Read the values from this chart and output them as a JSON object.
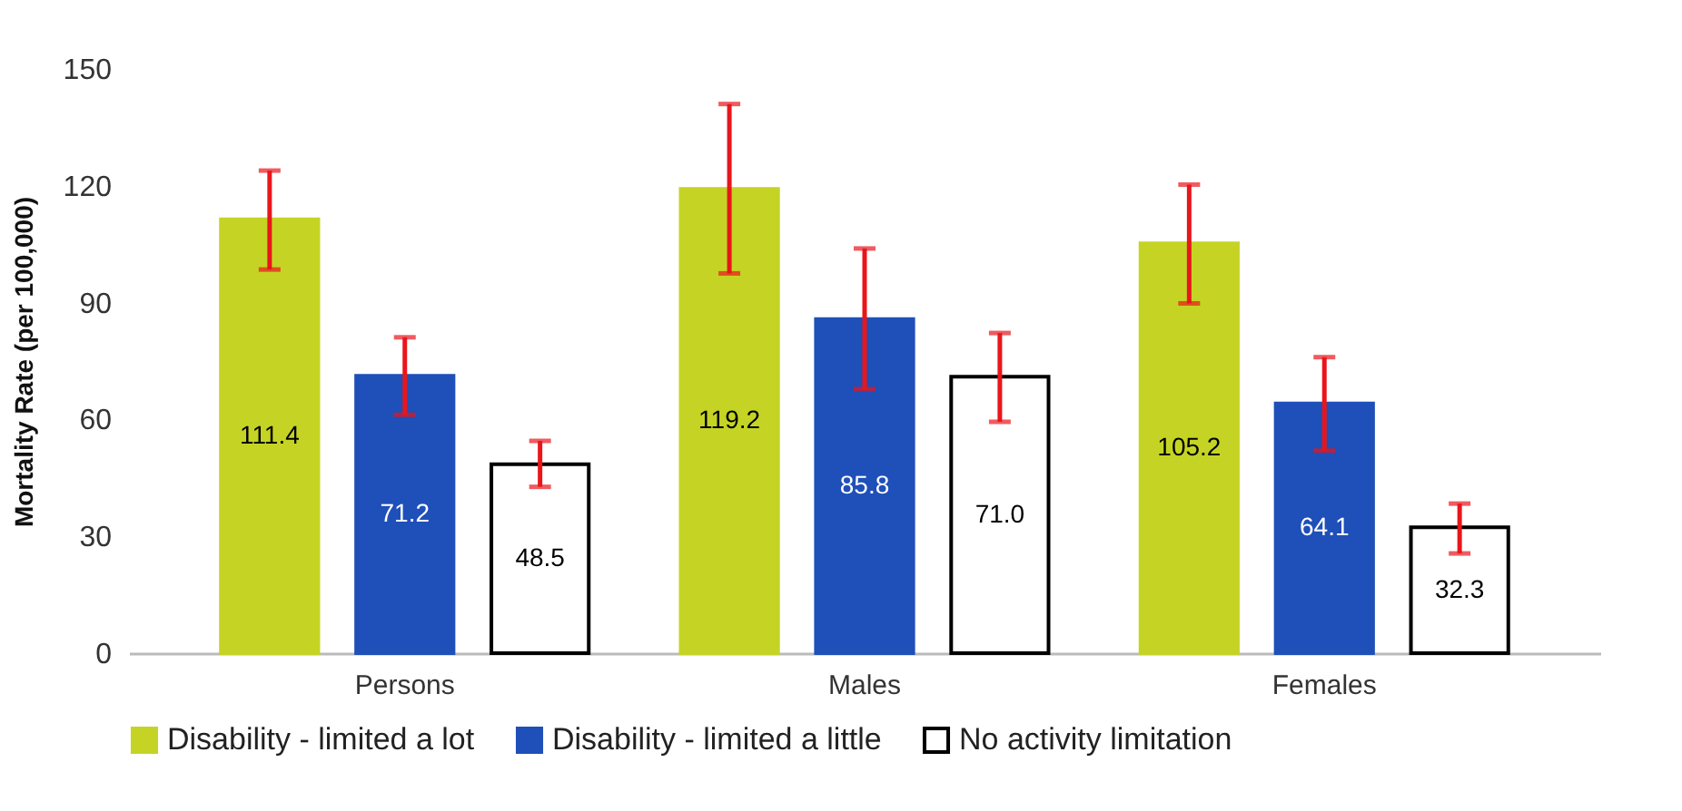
{
  "chart_data": {
    "type": "bar",
    "ylabel": "Mortality Rate (per 100,000)",
    "categories": [
      "Persons",
      "Males",
      "Females"
    ],
    "series": [
      {
        "name": "Disability - limited a lot",
        "color": "#c5d424",
        "values": [
          111.4,
          119.2,
          105.2
        ],
        "value_labels": [
          "111.4",
          "119.2",
          "105.2"
        ],
        "errors": [
          [
            98.5,
            123.9
          ],
          [
            97.5,
            141.0
          ],
          [
            89.8,
            120.3
          ]
        ]
      },
      {
        "name": "Disability - limited a little",
        "color": "#1f4fb8",
        "values": [
          71.2,
          85.8,
          64.1
        ],
        "value_labels": [
          "71.2",
          "85.8",
          "64.1"
        ],
        "errors": [
          [
            61.2,
            81.1
          ],
          [
            67.8,
            103.9
          ],
          [
            52.0,
            76.0
          ]
        ]
      },
      {
        "name": "No activity limitation",
        "color": "#ffffff",
        "values": [
          48.5,
          71.0,
          32.3
        ],
        "value_labels": [
          "48.5",
          "71.0",
          "32.3"
        ],
        "errors": [
          [
            42.7,
            54.5
          ],
          [
            59.4,
            82.2
          ],
          [
            25.6,
            38.4
          ]
        ]
      }
    ],
    "ylim": [
      0,
      150
    ],
    "yticks": [
      0,
      30,
      60,
      90,
      120,
      150
    ],
    "grid": false,
    "legend": "bottom"
  }
}
